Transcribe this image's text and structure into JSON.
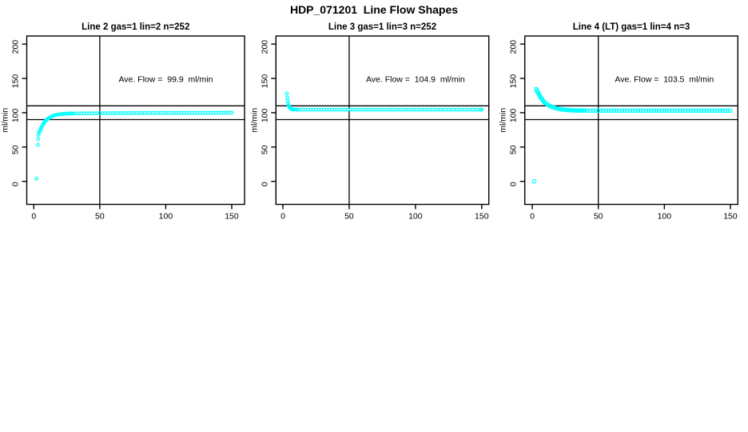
{
  "page": {
    "title": "HDP_071201  Line Flow Shapes"
  },
  "colors": {
    "marker": "#00FFFF",
    "axis": "#000000",
    "background": "#FFFFFF"
  },
  "chart_data": [
    {
      "type": "scatter",
      "title": "Line 2 gas=1 lin=2 n=252",
      "annotation": {
        "text": "Ave. Flow =  99.9  ml/min",
        "x": 100,
        "y": 149
      },
      "ave_flow_ml_min": 99.9,
      "xlabel": "",
      "ylabel": "ml/min",
      "xlim": [
        0,
        150
      ],
      "ylim": [
        0,
        200
      ],
      "xticks": [
        0,
        50,
        100,
        150
      ],
      "yticks": [
        0,
        50,
        100,
        150,
        200
      ],
      "hlines": [
        90,
        110
      ],
      "vlines": [
        50
      ],
      "marker": {
        "shape": "open-circle",
        "color": "#00FFFF",
        "radius": 1.8
      },
      "points": [
        [
          2,
          4
        ],
        [
          3,
          53
        ],
        [
          3.3,
          62
        ],
        [
          3.6,
          68
        ],
        [
          4,
          71
        ],
        [
          4.5,
          73.5
        ],
        [
          5,
          75
        ],
        [
          5.5,
          77.3
        ],
        [
          6,
          79.4
        ],
        [
          6.5,
          81.3
        ],
        [
          7,
          82.9
        ],
        [
          7.5,
          84.4
        ],
        [
          8,
          85.8
        ],
        [
          8.5,
          87
        ],
        [
          9,
          88.2
        ],
        [
          9.5,
          89.2
        ],
        [
          10,
          90.1
        ],
        [
          10.5,
          90.9
        ],
        [
          11,
          91.7
        ],
        [
          11.5,
          92.4
        ],
        [
          12,
          93
        ],
        [
          13,
          94.1
        ],
        [
          14,
          95
        ],
        [
          15,
          95.8
        ],
        [
          16,
          96.4
        ],
        [
          17,
          96.8
        ],
        [
          18,
          97.2
        ],
        [
          19,
          97.5
        ],
        [
          20,
          97.8
        ],
        [
          21,
          98
        ],
        [
          22,
          98.2
        ],
        [
          23,
          98.4
        ],
        [
          24,
          98.5
        ],
        [
          25,
          98.6
        ],
        [
          26,
          98.7
        ],
        [
          27,
          98.8
        ],
        [
          28,
          98.8
        ],
        [
          29,
          98.9
        ],
        [
          30,
          98.9
        ],
        [
          32,
          99
        ],
        [
          34,
          99
        ],
        [
          36,
          99
        ],
        [
          38,
          99.1
        ],
        [
          40,
          99.1
        ],
        [
          42,
          99.1
        ],
        [
          44,
          99.1
        ],
        [
          46,
          99.2
        ],
        [
          48,
          99.2
        ],
        [
          50,
          99.2
        ],
        [
          52,
          99.2
        ],
        [
          54,
          99.3
        ],
        [
          56,
          99.3
        ],
        [
          58,
          99.3
        ],
        [
          60,
          99.3
        ],
        [
          62,
          99.3
        ],
        [
          64,
          99.4
        ],
        [
          66,
          99.4
        ],
        [
          68,
          99.4
        ],
        [
          70,
          99.4
        ],
        [
          72,
          99.4
        ],
        [
          74,
          99.5
        ],
        [
          76,
          99.5
        ],
        [
          78,
          99.5
        ],
        [
          80,
          99.5
        ],
        [
          82,
          99.5
        ],
        [
          84,
          99.5
        ],
        [
          86,
          99.6
        ],
        [
          88,
          99.6
        ],
        [
          90,
          99.6
        ],
        [
          92,
          99.6
        ],
        [
          94,
          99.6
        ],
        [
          96,
          99.6
        ],
        [
          98,
          99.7
        ],
        [
          100,
          99.7
        ],
        [
          102,
          99.7
        ],
        [
          104,
          99.7
        ],
        [
          106,
          99.7
        ],
        [
          108,
          99.7
        ],
        [
          110,
          99.7
        ],
        [
          112,
          99.8
        ],
        [
          114,
          99.8
        ],
        [
          116,
          99.8
        ],
        [
          118,
          99.8
        ],
        [
          120,
          99.8
        ],
        [
          122,
          99.8
        ],
        [
          124,
          99.8
        ],
        [
          126,
          99.8
        ],
        [
          128,
          99.9
        ],
        [
          130,
          99.9
        ],
        [
          132,
          99.9
        ],
        [
          134,
          99.9
        ],
        [
          136,
          99.9
        ],
        [
          138,
          99.9
        ],
        [
          140,
          99.9
        ],
        [
          142,
          100
        ],
        [
          144,
          100
        ],
        [
          146,
          100
        ],
        [
          148,
          100
        ],
        [
          150,
          100
        ]
      ]
    },
    {
      "type": "scatter",
      "title": "Line 3 gas=1 lin=3 n=252",
      "annotation": {
        "text": "Ave. Flow =  104.9  ml/min",
        "x": 100,
        "y": 149
      },
      "ave_flow_ml_min": 104.9,
      "xlabel": "",
      "ylabel": "ml/min",
      "xlim": [
        0,
        150
      ],
      "ylim": [
        0,
        200
      ],
      "xticks": [
        0,
        50,
        100,
        150
      ],
      "yticks": [
        0,
        50,
        100,
        150,
        200
      ],
      "hlines": [
        90,
        110
      ],
      "vlines": [
        50
      ],
      "marker": {
        "shape": "open-circle",
        "color": "#00FFFF",
        "radius": 1.8
      },
      "points": [
        [
          3,
          128
        ],
        [
          3.3,
          122
        ],
        [
          3.6,
          117.5
        ],
        [
          4,
          113.5
        ],
        [
          4.3,
          111
        ],
        [
          4.6,
          109.3
        ],
        [
          5,
          107.8
        ],
        [
          5.4,
          106.8
        ],
        [
          5.8,
          106.1
        ],
        [
          6.2,
          105.6
        ],
        [
          6.6,
          105.3
        ],
        [
          7,
          105.1
        ],
        [
          7.5,
          104.9
        ],
        [
          8,
          104.8
        ],
        [
          9,
          104.7
        ],
        [
          10,
          104.6
        ],
        [
          11,
          104.5
        ],
        [
          13,
          104.6
        ],
        [
          15,
          104.5
        ],
        [
          17,
          104.4
        ],
        [
          19,
          104.5
        ],
        [
          21,
          104.6
        ],
        [
          23,
          104.5
        ],
        [
          25,
          104.5
        ],
        [
          27,
          104.4
        ],
        [
          29,
          104.5
        ],
        [
          31,
          104.6
        ],
        [
          33,
          104.5
        ],
        [
          35,
          104.5
        ],
        [
          37,
          104.4
        ],
        [
          39,
          104.5
        ],
        [
          41,
          104.6
        ],
        [
          43,
          104.5
        ],
        [
          45,
          104.5
        ],
        [
          47,
          104.4
        ],
        [
          49,
          104.5
        ],
        [
          51,
          104.5
        ],
        [
          53,
          104.6
        ],
        [
          55,
          104.5
        ],
        [
          57,
          104.4
        ],
        [
          59,
          104.5
        ],
        [
          61,
          104.5
        ],
        [
          63,
          104.6
        ],
        [
          65,
          104.5
        ],
        [
          67,
          104.4
        ],
        [
          69,
          104.5
        ],
        [
          71,
          104.5
        ],
        [
          73,
          104.6
        ],
        [
          75,
          104.5
        ],
        [
          77,
          104.4
        ],
        [
          79,
          104.5
        ],
        [
          81,
          104.5
        ],
        [
          83,
          104.6
        ],
        [
          85,
          104.5
        ],
        [
          87,
          104.4
        ],
        [
          89,
          104.5
        ],
        [
          91,
          104.5
        ],
        [
          93,
          104.6
        ],
        [
          95,
          104.5
        ],
        [
          97,
          104.4
        ],
        [
          99,
          104.5
        ],
        [
          101,
          104.5
        ],
        [
          103,
          104.6
        ],
        [
          105,
          104.5
        ],
        [
          107,
          104.4
        ],
        [
          109,
          104.5
        ],
        [
          111,
          104.5
        ],
        [
          113,
          104.6
        ],
        [
          115,
          104.5
        ],
        [
          117,
          104.4
        ],
        [
          119,
          104.5
        ],
        [
          121,
          104.5
        ],
        [
          123,
          104.6
        ],
        [
          125,
          104.5
        ],
        [
          127,
          104.4
        ],
        [
          129,
          104.5
        ],
        [
          131,
          104.5
        ],
        [
          133,
          104.6
        ],
        [
          135,
          104.5
        ],
        [
          137,
          104.4
        ],
        [
          139,
          104.5
        ],
        [
          141,
          104.5
        ],
        [
          143,
          104.6
        ],
        [
          145,
          104.5
        ],
        [
          147,
          104.4
        ],
        [
          149,
          104.5
        ],
        [
          150,
          104.5
        ]
      ]
    },
    {
      "type": "scatter",
      "title": "Line 4 (LT) gas=1 lin=4 n=3",
      "annotation": {
        "text": "Ave. Flow =  103.5  ml/min",
        "x": 100,
        "y": 149
      },
      "ave_flow_ml_min": 103.5,
      "xlabel": "",
      "ylabel": "ml/min",
      "xlim": [
        0,
        150
      ],
      "ylim": [
        0,
        200
      ],
      "xticks": [
        0,
        50,
        100,
        150
      ],
      "yticks": [
        0,
        50,
        100,
        150,
        200
      ],
      "hlines": [
        90,
        110
      ],
      "vlines": [
        50
      ],
      "marker": {
        "shape": "open-circle",
        "color": "#00FFFF",
        "radius": 2.2
      },
      "points": [
        [
          1.5,
          0
        ],
        [
          3,
          134.5
        ],
        [
          3.5,
          132.5
        ],
        [
          4,
          130.5
        ],
        [
          4.5,
          128.6
        ],
        [
          5,
          126.8
        ],
        [
          5.5,
          125.1
        ],
        [
          6,
          123.5
        ],
        [
          6.5,
          122
        ],
        [
          7,
          120.6
        ],
        [
          7.5,
          119.3
        ],
        [
          8,
          118
        ],
        [
          8.5,
          116.8
        ],
        [
          9,
          115.7
        ],
        [
          9.5,
          114.7
        ],
        [
          10,
          113.7
        ],
        [
          11,
          112.6
        ],
        [
          12,
          111.3
        ],
        [
          13,
          110.2
        ],
        [
          14,
          109.3
        ],
        [
          15,
          108.5
        ],
        [
          16,
          107.7
        ],
        [
          17,
          107.1
        ],
        [
          18,
          106.5
        ],
        [
          19,
          106.1
        ],
        [
          20,
          105.6
        ],
        [
          21,
          105.3
        ],
        [
          22,
          105
        ],
        [
          23,
          104.7
        ],
        [
          24,
          104.5
        ],
        [
          25,
          104.3
        ],
        [
          26,
          104.1
        ],
        [
          27,
          103.9
        ],
        [
          28,
          103.8
        ],
        [
          29,
          103.7
        ],
        [
          30,
          103.6
        ],
        [
          31,
          103.5
        ],
        [
          32,
          103.4
        ],
        [
          33,
          103.4
        ],
        [
          34,
          103.3
        ],
        [
          35,
          103.3
        ],
        [
          36,
          103.2
        ],
        [
          37,
          103.2
        ],
        [
          38,
          103.2
        ],
        [
          39,
          103.1
        ],
        [
          40,
          103.1
        ],
        [
          42,
          103
        ],
        [
          44,
          103.1
        ],
        [
          46,
          103
        ],
        [
          48,
          102.9
        ],
        [
          50,
          103
        ],
        [
          52,
          103.1
        ],
        [
          54,
          103
        ],
        [
          56,
          102.9
        ],
        [
          58,
          103
        ],
        [
          60,
          103
        ],
        [
          62,
          103.1
        ],
        [
          64,
          103
        ],
        [
          66,
          102.9
        ],
        [
          68,
          103
        ],
        [
          70,
          103
        ],
        [
          72,
          103.1
        ],
        [
          74,
          103
        ],
        [
          76,
          102.9
        ],
        [
          78,
          103
        ],
        [
          80,
          103
        ],
        [
          82,
          103.1
        ],
        [
          84,
          103
        ],
        [
          86,
          102.9
        ],
        [
          88,
          103
        ],
        [
          90,
          103
        ],
        [
          92,
          103.1
        ],
        [
          94,
          103
        ],
        [
          96,
          102.9
        ],
        [
          98,
          103
        ],
        [
          100,
          103
        ],
        [
          102,
          103.1
        ],
        [
          104,
          103
        ],
        [
          106,
          102.9
        ],
        [
          108,
          103
        ],
        [
          110,
          103
        ],
        [
          112,
          103.1
        ],
        [
          114,
          103
        ],
        [
          116,
          102.9
        ],
        [
          118,
          103
        ],
        [
          120,
          103
        ],
        [
          122,
          103.1
        ],
        [
          124,
          103
        ],
        [
          126,
          102.9
        ],
        [
          128,
          103
        ],
        [
          130,
          103
        ],
        [
          132,
          103.1
        ],
        [
          134,
          103
        ],
        [
          136,
          102.9
        ],
        [
          138,
          103
        ],
        [
          140,
          103
        ],
        [
          142,
          103.1
        ],
        [
          144,
          103
        ],
        [
          146,
          102.9
        ],
        [
          148,
          103
        ],
        [
          150,
          103
        ]
      ]
    }
  ]
}
